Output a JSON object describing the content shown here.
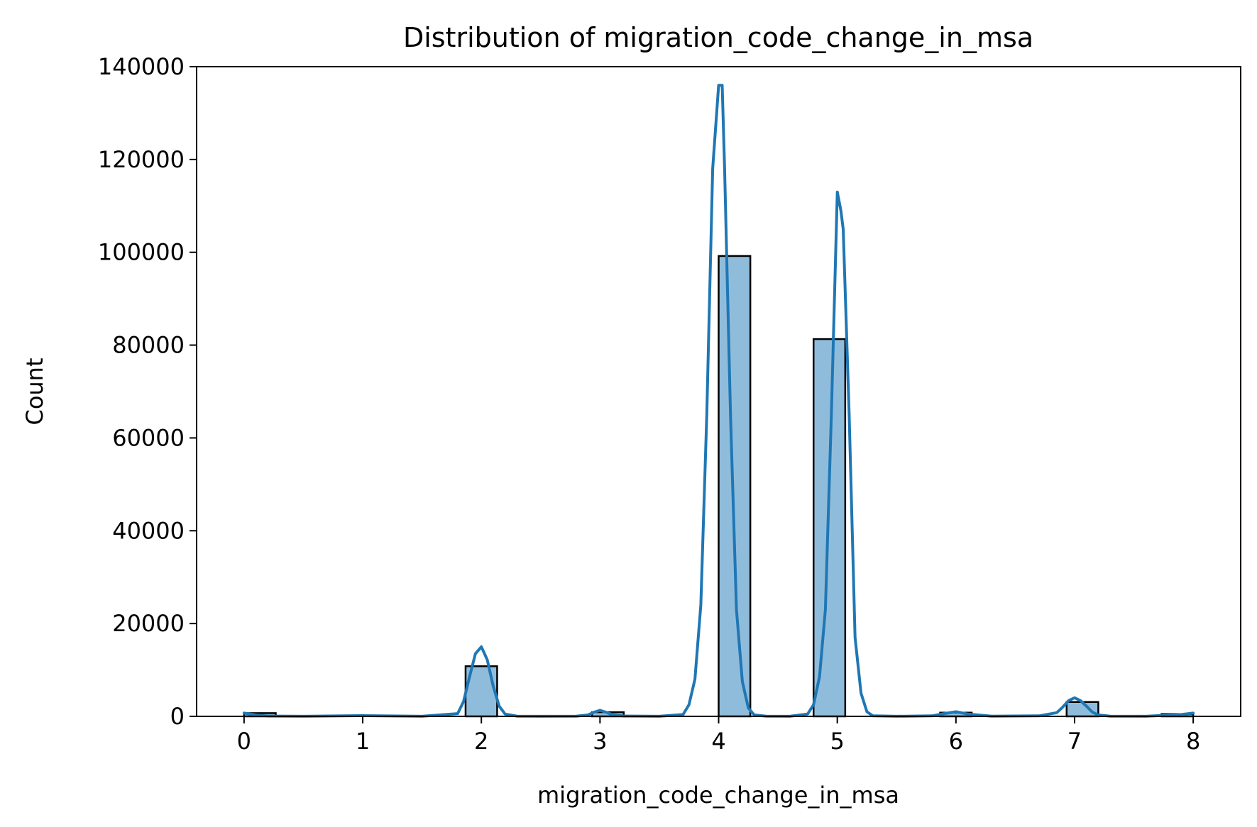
{
  "chart_data": {
    "type": "bar",
    "title": "Distribution of migration_code_change_in_msa",
    "xlabel": "migration_code_change_in_msa",
    "ylabel": "Count",
    "xlim": [
      -0.4,
      8.4
    ],
    "ylim": [
      0,
      140000
    ],
    "xticks": [
      0,
      1,
      2,
      3,
      4,
      5,
      6,
      7,
      8
    ],
    "yticks": [
      0,
      20000,
      40000,
      60000,
      80000,
      100000,
      120000,
      140000
    ],
    "grid": false,
    "histogram": {
      "bin_width": 0.2667,
      "bins": [
        {
          "x0": 0.0,
          "x1": 0.267,
          "count": 700
        },
        {
          "x0": 1.867,
          "x1": 2.133,
          "count": 10800
        },
        {
          "x0": 2.933,
          "x1": 3.2,
          "count": 900
        },
        {
          "x0": 4.0,
          "x1": 4.267,
          "count": 99200
        },
        {
          "x0": 4.8,
          "x1": 5.067,
          "count": 81300
        },
        {
          "x0": 5.867,
          "x1": 6.133,
          "count": 800
        },
        {
          "x0": 6.933,
          "x1": 7.2,
          "count": 3100
        },
        {
          "x0": 7.733,
          "x1": 8.0,
          "count": 500
        }
      ]
    },
    "kde": {
      "x": [
        0.0,
        0.1,
        0.2,
        0.5,
        1.0,
        1.5,
        1.8,
        1.85,
        1.9,
        1.95,
        2.0,
        2.05,
        2.1,
        2.15,
        2.2,
        2.3,
        2.5,
        2.8,
        2.9,
        2.95,
        3.0,
        3.05,
        3.1,
        3.2,
        3.5,
        3.7,
        3.75,
        3.8,
        3.85,
        3.9,
        3.95,
        4.0,
        4.03,
        4.05,
        4.1,
        4.15,
        4.2,
        4.25,
        4.3,
        4.4,
        4.6,
        4.75,
        4.8,
        4.85,
        4.9,
        4.95,
        5.0,
        5.03,
        5.05,
        5.1,
        5.15,
        5.2,
        5.25,
        5.3,
        5.5,
        5.8,
        5.9,
        6.0,
        6.1,
        6.3,
        6.7,
        6.85,
        6.9,
        6.95,
        7.0,
        7.05,
        7.1,
        7.15,
        7.2,
        7.3,
        7.6,
        7.9,
        8.0
      ],
      "y": [
        700,
        300,
        60,
        20,
        150,
        20,
        600,
        3200,
        8500,
        13500,
        15000,
        12200,
        6500,
        2200,
        500,
        50,
        20,
        50,
        300,
        900,
        1300,
        900,
        400,
        60,
        20,
        400,
        2500,
        8000,
        24000,
        65000,
        118000,
        136000,
        136000,
        118000,
        65000,
        23000,
        7500,
        1800,
        300,
        50,
        20,
        500,
        2500,
        8500,
        23000,
        65000,
        113000,
        109000,
        105000,
        65000,
        17000,
        5000,
        1000,
        100,
        20,
        100,
        600,
        1000,
        500,
        50,
        100,
        800,
        2000,
        3400,
        4000,
        3400,
        2200,
        900,
        300,
        50,
        20,
        400,
        700
      ]
    },
    "colors": {
      "bar_fill": "#90bcdc",
      "bar_edge": "#000000",
      "kde_line": "#1f77b4"
    }
  }
}
